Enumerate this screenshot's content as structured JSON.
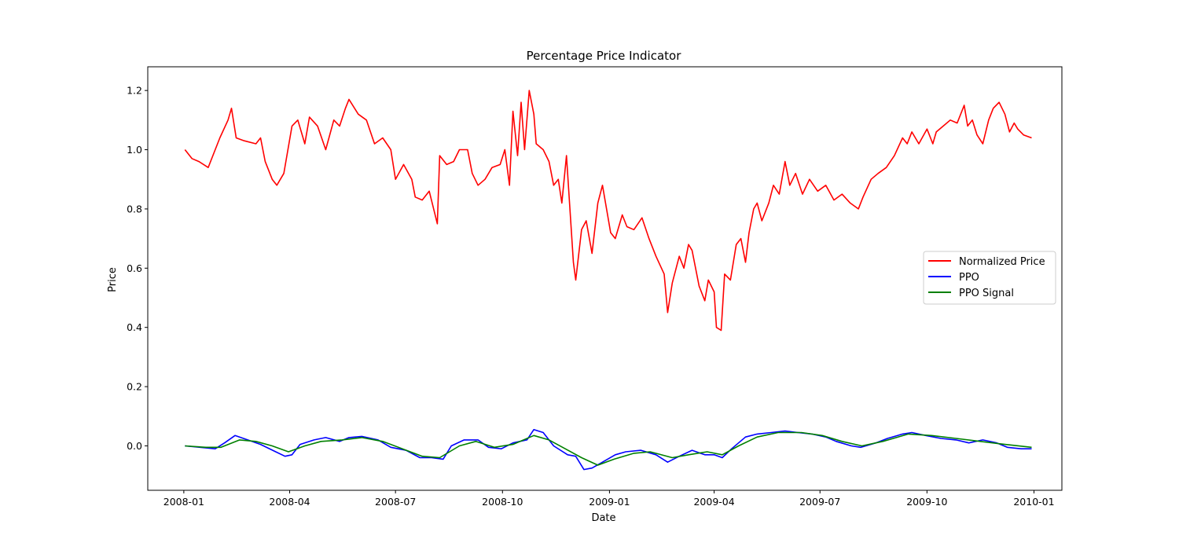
{
  "chart_data": {
    "type": "line",
    "title": "Percentage Price Indicator",
    "xlabel": "Date",
    "ylabel": "Price",
    "xlim": [
      "2007-12-01",
      "2010-01-25"
    ],
    "ylim": [
      -0.15,
      1.28
    ],
    "x_ticks": [
      "2008-01-01",
      "2008-04-01",
      "2008-07-01",
      "2008-10-01",
      "2009-01-01",
      "2009-04-01",
      "2009-07-01",
      "2009-10-01",
      "2010-01-01"
    ],
    "x_tick_labels": [
      "2008-01",
      "2008-04",
      "2008-07",
      "2008-10",
      "2009-01",
      "2009-04",
      "2009-07",
      "2009-10",
      "2010-01"
    ],
    "y_ticks": [
      0.0,
      0.2,
      0.4,
      0.6,
      0.8,
      1.0,
      1.2
    ],
    "y_tick_labels": [
      "0.0",
      "0.2",
      "0.4",
      "0.6",
      "0.8",
      "1.0",
      "1.2"
    ],
    "grid": false,
    "legend_position": "center-right",
    "series": [
      {
        "name": "Normalized Price",
        "color": "#ff0000",
        "points": [
          [
            "2008-01-02",
            1.0
          ],
          [
            "2008-01-08",
            0.97
          ],
          [
            "2008-01-14",
            0.96
          ],
          [
            "2008-01-22",
            0.94
          ],
          [
            "2008-02-01",
            1.04
          ],
          [
            "2008-02-08",
            1.1
          ],
          [
            "2008-02-11",
            1.14
          ],
          [
            "2008-02-15",
            1.04
          ],
          [
            "2008-02-22",
            1.03
          ],
          [
            "2008-03-03",
            1.02
          ],
          [
            "2008-03-07",
            1.04
          ],
          [
            "2008-03-11",
            0.96
          ],
          [
            "2008-03-17",
            0.9
          ],
          [
            "2008-03-21",
            0.88
          ],
          [
            "2008-03-27",
            0.92
          ],
          [
            "2008-04-03",
            1.08
          ],
          [
            "2008-04-08",
            1.1
          ],
          [
            "2008-04-14",
            1.02
          ],
          [
            "2008-04-18",
            1.11
          ],
          [
            "2008-04-25",
            1.08
          ],
          [
            "2008-05-02",
            1.0
          ],
          [
            "2008-05-09",
            1.1
          ],
          [
            "2008-05-14",
            1.08
          ],
          [
            "2008-05-19",
            1.14
          ],
          [
            "2008-05-22",
            1.17
          ],
          [
            "2008-05-30",
            1.12
          ],
          [
            "2008-06-06",
            1.1
          ],
          [
            "2008-06-13",
            1.02
          ],
          [
            "2008-06-20",
            1.04
          ],
          [
            "2008-06-27",
            1.0
          ],
          [
            "2008-07-01",
            0.9
          ],
          [
            "2008-07-08",
            0.95
          ],
          [
            "2008-07-15",
            0.9
          ],
          [
            "2008-07-18",
            0.84
          ],
          [
            "2008-07-24",
            0.83
          ],
          [
            "2008-07-30",
            0.86
          ],
          [
            "2008-08-06",
            0.75
          ],
          [
            "2008-08-08",
            0.98
          ],
          [
            "2008-08-14",
            0.95
          ],
          [
            "2008-08-20",
            0.96
          ],
          [
            "2008-08-25",
            1.0
          ],
          [
            "2008-09-01",
            1.0
          ],
          [
            "2008-09-05",
            0.92
          ],
          [
            "2008-09-10",
            0.88
          ],
          [
            "2008-09-16",
            0.9
          ],
          [
            "2008-09-22",
            0.94
          ],
          [
            "2008-09-29",
            0.95
          ],
          [
            "2008-10-03",
            1.0
          ],
          [
            "2008-10-07",
            0.88
          ],
          [
            "2008-10-10",
            1.13
          ],
          [
            "2008-10-14",
            0.98
          ],
          [
            "2008-10-17",
            1.16
          ],
          [
            "2008-10-20",
            1.0
          ],
          [
            "2008-10-24",
            1.2
          ],
          [
            "2008-10-28",
            1.12
          ],
          [
            "2008-10-30",
            1.02
          ],
          [
            "2008-11-05",
            1.0
          ],
          [
            "2008-11-10",
            0.96
          ],
          [
            "2008-11-14",
            0.88
          ],
          [
            "2008-11-18",
            0.9
          ],
          [
            "2008-11-21",
            0.82
          ],
          [
            "2008-11-25",
            0.98
          ],
          [
            "2008-12-01",
            0.62
          ],
          [
            "2008-12-03",
            0.56
          ],
          [
            "2008-12-08",
            0.73
          ],
          [
            "2008-12-12",
            0.76
          ],
          [
            "2008-12-17",
            0.65
          ],
          [
            "2008-12-22",
            0.82
          ],
          [
            "2008-12-26",
            0.88
          ],
          [
            "2009-01-02",
            0.72
          ],
          [
            "2009-01-06",
            0.7
          ],
          [
            "2009-01-12",
            0.78
          ],
          [
            "2009-01-16",
            0.74
          ],
          [
            "2009-01-22",
            0.73
          ],
          [
            "2009-01-29",
            0.77
          ],
          [
            "2009-02-04",
            0.7
          ],
          [
            "2009-02-10",
            0.64
          ],
          [
            "2009-02-17",
            0.58
          ],
          [
            "2009-02-20",
            0.45
          ],
          [
            "2009-02-24",
            0.55
          ],
          [
            "2009-03-02",
            0.64
          ],
          [
            "2009-03-06",
            0.6
          ],
          [
            "2009-03-10",
            0.68
          ],
          [
            "2009-03-13",
            0.66
          ],
          [
            "2009-03-19",
            0.54
          ],
          [
            "2009-03-24",
            0.49
          ],
          [
            "2009-03-27",
            0.56
          ],
          [
            "2009-04-01",
            0.52
          ],
          [
            "2009-04-03",
            0.4
          ],
          [
            "2009-04-07",
            0.39
          ],
          [
            "2009-04-10",
            0.58
          ],
          [
            "2009-04-15",
            0.56
          ],
          [
            "2009-04-20",
            0.68
          ],
          [
            "2009-04-24",
            0.7
          ],
          [
            "2009-04-28",
            0.62
          ],
          [
            "2009-05-01",
            0.72
          ],
          [
            "2009-05-05",
            0.8
          ],
          [
            "2009-05-08",
            0.82
          ],
          [
            "2009-05-12",
            0.76
          ],
          [
            "2009-05-18",
            0.82
          ],
          [
            "2009-05-22",
            0.88
          ],
          [
            "2009-05-27",
            0.85
          ],
          [
            "2009-06-01",
            0.96
          ],
          [
            "2009-06-05",
            0.88
          ],
          [
            "2009-06-10",
            0.92
          ],
          [
            "2009-06-16",
            0.85
          ],
          [
            "2009-06-22",
            0.9
          ],
          [
            "2009-06-29",
            0.86
          ],
          [
            "2009-07-06",
            0.88
          ],
          [
            "2009-07-13",
            0.83
          ],
          [
            "2009-07-20",
            0.85
          ],
          [
            "2009-07-27",
            0.82
          ],
          [
            "2009-08-03",
            0.8
          ],
          [
            "2009-08-07",
            0.84
          ],
          [
            "2009-08-14",
            0.9
          ],
          [
            "2009-08-20",
            0.92
          ],
          [
            "2009-08-27",
            0.94
          ],
          [
            "2009-09-03",
            0.98
          ],
          [
            "2009-09-10",
            1.04
          ],
          [
            "2009-09-14",
            1.02
          ],
          [
            "2009-09-18",
            1.06
          ],
          [
            "2009-09-24",
            1.02
          ],
          [
            "2009-10-01",
            1.07
          ],
          [
            "2009-10-06",
            1.02
          ],
          [
            "2009-10-09",
            1.06
          ],
          [
            "2009-10-15",
            1.08
          ],
          [
            "2009-10-21",
            1.1
          ],
          [
            "2009-10-27",
            1.09
          ],
          [
            "2009-11-02",
            1.15
          ],
          [
            "2009-11-05",
            1.08
          ],
          [
            "2009-11-09",
            1.1
          ],
          [
            "2009-11-13",
            1.05
          ],
          [
            "2009-11-18",
            1.02
          ],
          [
            "2009-11-23",
            1.1
          ],
          [
            "2009-11-27",
            1.14
          ],
          [
            "2009-12-02",
            1.16
          ],
          [
            "2009-12-07",
            1.12
          ],
          [
            "2009-12-11",
            1.06
          ],
          [
            "2009-12-15",
            1.09
          ],
          [
            "2009-12-18",
            1.07
          ],
          [
            "2009-12-23",
            1.05
          ],
          [
            "2009-12-30",
            1.04
          ]
        ]
      },
      {
        "name": "PPO",
        "color": "#0000ff",
        "points": [
          [
            "2008-01-02",
            0.0
          ],
          [
            "2008-01-15",
            -0.005
          ],
          [
            "2008-01-28",
            -0.01
          ],
          [
            "2008-02-05",
            0.01
          ],
          [
            "2008-02-14",
            0.035
          ],
          [
            "2008-02-25",
            0.02
          ],
          [
            "2008-03-07",
            0.005
          ],
          [
            "2008-03-20",
            -0.02
          ],
          [
            "2008-03-28",
            -0.035
          ],
          [
            "2008-04-03",
            -0.03
          ],
          [
            "2008-04-10",
            0.005
          ],
          [
            "2008-04-22",
            0.02
          ],
          [
            "2008-05-02",
            0.028
          ],
          [
            "2008-05-14",
            0.015
          ],
          [
            "2008-05-22",
            0.028
          ],
          [
            "2008-06-02",
            0.032
          ],
          [
            "2008-06-16",
            0.02
          ],
          [
            "2008-06-27",
            -0.005
          ],
          [
            "2008-07-10",
            -0.015
          ],
          [
            "2008-07-22",
            -0.04
          ],
          [
            "2008-08-01",
            -0.04
          ],
          [
            "2008-08-11",
            -0.045
          ],
          [
            "2008-08-18",
            0.0
          ],
          [
            "2008-08-29",
            0.02
          ],
          [
            "2008-09-10",
            0.02
          ],
          [
            "2008-09-19",
            -0.005
          ],
          [
            "2008-09-30",
            -0.01
          ],
          [
            "2008-10-10",
            0.01
          ],
          [
            "2008-10-22",
            0.02
          ],
          [
            "2008-10-28",
            0.055
          ],
          [
            "2008-11-05",
            0.045
          ],
          [
            "2008-11-14",
            0.0
          ],
          [
            "2008-11-26",
            -0.03
          ],
          [
            "2008-12-03",
            -0.035
          ],
          [
            "2008-12-10",
            -0.08
          ],
          [
            "2008-12-17",
            -0.075
          ],
          [
            "2008-12-26",
            -0.055
          ],
          [
            "2009-01-06",
            -0.03
          ],
          [
            "2009-01-15",
            -0.02
          ],
          [
            "2009-01-28",
            -0.015
          ],
          [
            "2009-02-10",
            -0.03
          ],
          [
            "2009-02-20",
            -0.055
          ],
          [
            "2009-03-02",
            -0.035
          ],
          [
            "2009-03-13",
            -0.015
          ],
          [
            "2009-03-24",
            -0.03
          ],
          [
            "2009-04-01",
            -0.03
          ],
          [
            "2009-04-08",
            -0.04
          ],
          [
            "2009-04-16",
            -0.01
          ],
          [
            "2009-04-28",
            0.03
          ],
          [
            "2009-05-08",
            0.04
          ],
          [
            "2009-05-20",
            0.045
          ],
          [
            "2009-06-01",
            0.05
          ],
          [
            "2009-06-12",
            0.045
          ],
          [
            "2009-06-24",
            0.04
          ],
          [
            "2009-07-06",
            0.03
          ],
          [
            "2009-07-15",
            0.015
          ],
          [
            "2009-07-28",
            0.0
          ],
          [
            "2009-08-05",
            -0.005
          ],
          [
            "2009-08-18",
            0.01
          ],
          [
            "2009-08-28",
            0.025
          ],
          [
            "2009-09-10",
            0.04
          ],
          [
            "2009-09-18",
            0.045
          ],
          [
            "2009-09-30",
            0.035
          ],
          [
            "2009-10-13",
            0.025
          ],
          [
            "2009-10-26",
            0.02
          ],
          [
            "2009-11-06",
            0.01
          ],
          [
            "2009-11-18",
            0.02
          ],
          [
            "2009-11-30",
            0.01
          ],
          [
            "2009-12-09",
            -0.005
          ],
          [
            "2009-12-21",
            -0.01
          ],
          [
            "2009-12-30",
            -0.01
          ]
        ]
      },
      {
        "name": "PPO Signal",
        "color": "#008000",
        "points": [
          [
            "2008-01-02",
            0.0
          ],
          [
            "2008-01-20",
            -0.005
          ],
          [
            "2008-02-02",
            -0.005
          ],
          [
            "2008-02-18",
            0.02
          ],
          [
            "2008-03-03",
            0.015
          ],
          [
            "2008-03-17",
            0.0
          ],
          [
            "2008-03-31",
            -0.02
          ],
          [
            "2008-04-14",
            0.0
          ],
          [
            "2008-04-28",
            0.015
          ],
          [
            "2008-05-16",
            0.02
          ],
          [
            "2008-06-02",
            0.028
          ],
          [
            "2008-06-20",
            0.015
          ],
          [
            "2008-07-07",
            -0.01
          ],
          [
            "2008-07-24",
            -0.035
          ],
          [
            "2008-08-08",
            -0.04
          ],
          [
            "2008-08-25",
            0.0
          ],
          [
            "2008-09-08",
            0.015
          ],
          [
            "2008-09-24",
            -0.005
          ],
          [
            "2008-10-10",
            0.005
          ],
          [
            "2008-10-28",
            0.035
          ],
          [
            "2008-11-10",
            0.02
          ],
          [
            "2008-11-24",
            -0.01
          ],
          [
            "2008-12-08",
            -0.04
          ],
          [
            "2008-12-22",
            -0.065
          ],
          [
            "2009-01-05",
            -0.045
          ],
          [
            "2009-01-22",
            -0.025
          ],
          [
            "2009-02-05",
            -0.02
          ],
          [
            "2009-02-24",
            -0.04
          ],
          [
            "2009-03-10",
            -0.03
          ],
          [
            "2009-03-26",
            -0.02
          ],
          [
            "2009-04-08",
            -0.03
          ],
          [
            "2009-04-22",
            0.0
          ],
          [
            "2009-05-08",
            0.03
          ],
          [
            "2009-05-26",
            0.045
          ],
          [
            "2009-06-15",
            0.045
          ],
          [
            "2009-07-03",
            0.035
          ],
          [
            "2009-07-20",
            0.015
          ],
          [
            "2009-08-06",
            0.0
          ],
          [
            "2009-08-24",
            0.015
          ],
          [
            "2009-09-15",
            0.04
          ],
          [
            "2009-10-05",
            0.035
          ],
          [
            "2009-10-26",
            0.025
          ],
          [
            "2009-11-16",
            0.015
          ],
          [
            "2009-12-07",
            0.005
          ],
          [
            "2009-12-30",
            -0.005
          ]
        ]
      }
    ]
  }
}
